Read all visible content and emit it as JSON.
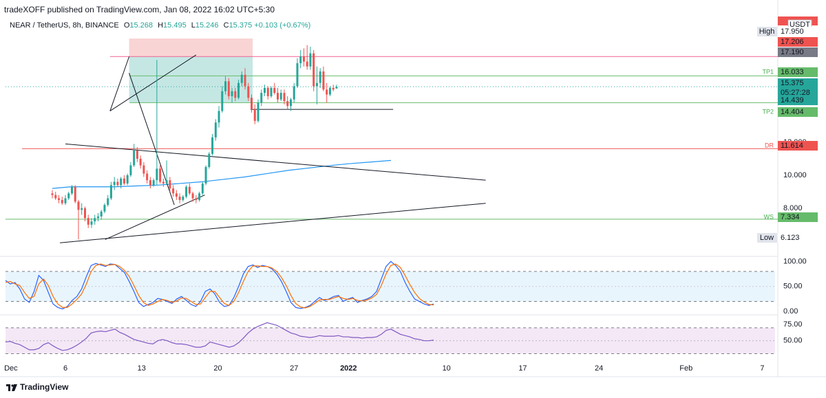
{
  "attribution": "tradeXOFF published on TradingView.com, Jan 08, 2022 16:02 UTC+5:30",
  "symbol": {
    "name": "NEAR / TetherUS, 8h, BINANCE",
    "open_key": "O",
    "open": "15.268",
    "high_key": "H",
    "high": "15.495",
    "low_key": "L",
    "low": "15.246",
    "close_key": "C",
    "close": "15.375",
    "change": "+0.103 (+0.67%)"
  },
  "currency": "USDT",
  "brand": "TradingView",
  "colors": {
    "up": "#26a69a",
    "down": "#ef5350",
    "ma": "#2196f3",
    "stoch_k": "#2962ff",
    "stoch_d": "#ff6d00",
    "rsi": "#7e57c2",
    "stop_zone": "#f7c6c5",
    "target_zone": "#b2dfdb"
  },
  "chart_data": [
    {
      "type": "line",
      "title": "NEAR / TetherUS, 8h, BINANCE",
      "x_ticks": [
        "Dec",
        "6",
        "13",
        "20",
        "27",
        "2022",
        "10",
        "17",
        "24",
        "Feb",
        "7"
      ],
      "y_ticks": [
        "8.000",
        "10.000",
        "12.000"
      ],
      "ylim": [
        5.2,
        18.3
      ],
      "last_price": 15.375,
      "countdown": "05:27:28",
      "price_labels": [
        {
          "tag": "High",
          "value": "17.950"
        },
        {
          "tag": "",
          "value": "17.206"
        },
        {
          "tag": "",
          "value": "17.190"
        },
        {
          "tag": "TP1",
          "value": "16.033"
        },
        {
          "tag": "",
          "value": "15.375"
        },
        {
          "tag": "",
          "value": "14.439"
        },
        {
          "tag": "TP2",
          "value": "14.404"
        },
        {
          "tag": "DR",
          "value": "11.614"
        },
        {
          "tag": "WS",
          "value": "7.334"
        },
        {
          "tag": "Low",
          "value": "6.123"
        }
      ],
      "horizontal_lines": [
        {
          "value": 17.206,
          "color": "#f06292"
        },
        {
          "value": 16.033,
          "color": "#66bb6a"
        },
        {
          "value": 14.404,
          "color": "#66bb6a"
        },
        {
          "value": 11.614,
          "color": "#ef5350"
        },
        {
          "value": 7.334,
          "color": "#66bb6a"
        }
      ],
      "position": {
        "stop_top": 18.3,
        "entry": 17.206,
        "target": 14.404,
        "from_day": 5.85,
        "to_day": 17.2
      },
      "trendlines": [
        {
          "x1": 0,
          "y1": 11.9,
          "x2": 38.6,
          "y2": 9.7
        },
        {
          "x1": -0.5,
          "y1": 5.9,
          "x2": 38.6,
          "y2": 8.3
        },
        {
          "x1": 3.65,
          "y1": 6.1,
          "x2": 12.8,
          "y2": 8.8
        },
        {
          "x1": 10.0,
          "y1": 8.2,
          "x2": 5.85,
          "y2": 16.2
        },
        {
          "x1": 4.1,
          "y1": 13.9,
          "x2": 12.0,
          "y2": 17.3
        },
        {
          "x1": 4.1,
          "y1": 13.9,
          "x2": 5.85,
          "y2": 17.2
        },
        {
          "x1": 17.0,
          "y1": 14.0,
          "x2": 30.1,
          "y2": 14.0
        }
      ],
      "ma_series": {
        "name": "",
        "x": [
          -1.2,
          0.5,
          2.5,
          4.5,
          6.5,
          8.5,
          10.5,
          12.5,
          14.5,
          16.5,
          18.5,
          20.5,
          22.5,
          24.5,
          26.0,
          28.0,
          29.9
        ],
        "values": [
          9.2,
          9.3,
          9.3,
          9.3,
          9.35,
          9.4,
          9.5,
          9.6,
          9.75,
          9.9,
          10.1,
          10.3,
          10.45,
          10.6,
          10.7,
          10.8,
          10.9
        ]
      },
      "candles": [
        {
          "x": -1.2,
          "o": 8.9,
          "h": 9.1,
          "l": 8.6,
          "c": 8.8
        },
        {
          "x": -0.9,
          "o": 8.8,
          "h": 9.0,
          "l": 8.5,
          "c": 8.6
        },
        {
          "x": -0.6,
          "o": 8.6,
          "h": 8.8,
          "l": 8.3,
          "c": 8.5
        },
        {
          "x": -0.3,
          "o": 8.5,
          "h": 8.7,
          "l": 8.2,
          "c": 8.3
        },
        {
          "x": 0.0,
          "o": 8.3,
          "h": 8.8,
          "l": 8.2,
          "c": 8.6
        },
        {
          "x": 0.3,
          "o": 8.6,
          "h": 9.0,
          "l": 8.5,
          "c": 8.9
        },
        {
          "x": 0.6,
          "o": 8.9,
          "h": 9.4,
          "l": 8.8,
          "c": 9.3
        },
        {
          "x": 0.9,
          "o": 9.3,
          "h": 9.4,
          "l": 8.3,
          "c": 8.4
        },
        {
          "x": 1.2,
          "o": 8.4,
          "h": 8.5,
          "l": 6.1,
          "c": 7.9
        },
        {
          "x": 1.5,
          "o": 7.9,
          "h": 8.3,
          "l": 7.6,
          "c": 8.0
        },
        {
          "x": 1.8,
          "o": 8.0,
          "h": 8.1,
          "l": 7.2,
          "c": 7.4
        },
        {
          "x": 2.1,
          "o": 7.4,
          "h": 7.6,
          "l": 6.8,
          "c": 7.0
        },
        {
          "x": 2.4,
          "o": 7.0,
          "h": 7.4,
          "l": 6.8,
          "c": 7.2
        },
        {
          "x": 2.7,
          "o": 7.2,
          "h": 7.6,
          "l": 7.0,
          "c": 7.4
        },
        {
          "x": 3.0,
          "o": 7.4,
          "h": 7.7,
          "l": 7.2,
          "c": 7.5
        },
        {
          "x": 3.3,
          "o": 7.5,
          "h": 7.9,
          "l": 7.3,
          "c": 7.8
        },
        {
          "x": 3.6,
          "o": 7.8,
          "h": 8.3,
          "l": 7.7,
          "c": 8.2
        },
        {
          "x": 3.9,
          "o": 8.2,
          "h": 8.8,
          "l": 8.1,
          "c": 8.6
        },
        {
          "x": 4.2,
          "o": 8.6,
          "h": 9.6,
          "l": 8.5,
          "c": 9.4
        },
        {
          "x": 4.5,
          "o": 9.4,
          "h": 9.9,
          "l": 9.1,
          "c": 9.6
        },
        {
          "x": 4.8,
          "o": 9.6,
          "h": 9.8,
          "l": 9.3,
          "c": 9.4
        },
        {
          "x": 5.1,
          "o": 9.4,
          "h": 9.9,
          "l": 9.2,
          "c": 9.8
        },
        {
          "x": 5.4,
          "o": 9.8,
          "h": 10.0,
          "l": 9.4,
          "c": 9.5
        },
        {
          "x": 5.7,
          "o": 9.5,
          "h": 10.1,
          "l": 9.4,
          "c": 10.0
        },
        {
          "x": 6.0,
          "o": 10.0,
          "h": 10.8,
          "l": 9.9,
          "c": 10.6
        },
        {
          "x": 6.3,
          "o": 10.6,
          "h": 11.9,
          "l": 10.5,
          "c": 11.5
        },
        {
          "x": 6.6,
          "o": 11.5,
          "h": 11.7,
          "l": 10.8,
          "c": 11.0
        },
        {
          "x": 6.9,
          "o": 11.0,
          "h": 11.2,
          "l": 10.4,
          "c": 10.6
        },
        {
          "x": 7.2,
          "o": 10.6,
          "h": 10.8,
          "l": 9.9,
          "c": 10.1
        },
        {
          "x": 7.5,
          "o": 10.1,
          "h": 10.3,
          "l": 9.5,
          "c": 9.7
        },
        {
          "x": 7.8,
          "o": 9.7,
          "h": 9.9,
          "l": 9.2,
          "c": 9.4
        },
        {
          "x": 8.1,
          "o": 9.4,
          "h": 9.8,
          "l": 9.3,
          "c": 9.7
        },
        {
          "x": 8.4,
          "o": 9.7,
          "h": 17.0,
          "l": 9.4,
          "c": 10.4
        },
        {
          "x": 8.7,
          "o": 10.4,
          "h": 10.6,
          "l": 9.5,
          "c": 9.6
        },
        {
          "x": 9.0,
          "o": 9.6,
          "h": 9.8,
          "l": 9.3,
          "c": 9.5
        },
        {
          "x": 9.3,
          "o": 9.5,
          "h": 10.9,
          "l": 9.4,
          "c": 9.7
        },
        {
          "x": 9.6,
          "o": 9.7,
          "h": 9.9,
          "l": 9.0,
          "c": 9.2
        },
        {
          "x": 9.9,
          "o": 9.2,
          "h": 9.4,
          "l": 8.7,
          "c": 8.9
        },
        {
          "x": 10.2,
          "o": 8.9,
          "h": 9.1,
          "l": 8.5,
          "c": 8.7
        },
        {
          "x": 10.5,
          "o": 8.7,
          "h": 8.9,
          "l": 8.3,
          "c": 8.5
        },
        {
          "x": 10.8,
          "o": 8.5,
          "h": 8.8,
          "l": 8.4,
          "c": 8.7
        },
        {
          "x": 11.1,
          "o": 8.7,
          "h": 9.4,
          "l": 8.6,
          "c": 9.3
        },
        {
          "x": 11.4,
          "o": 9.3,
          "h": 9.5,
          "l": 8.8,
          "c": 8.9
        },
        {
          "x": 11.7,
          "o": 8.9,
          "h": 9.0,
          "l": 8.4,
          "c": 8.6
        },
        {
          "x": 12.0,
          "o": 8.6,
          "h": 8.8,
          "l": 8.3,
          "c": 8.5
        },
        {
          "x": 12.3,
          "o": 8.5,
          "h": 9.0,
          "l": 8.4,
          "c": 8.9
        },
        {
          "x": 12.6,
          "o": 8.9,
          "h": 9.6,
          "l": 8.8,
          "c": 9.5
        },
        {
          "x": 12.9,
          "o": 9.5,
          "h": 10.6,
          "l": 9.4,
          "c": 10.5
        },
        {
          "x": 13.2,
          "o": 10.5,
          "h": 11.4,
          "l": 10.4,
          "c": 11.3
        },
        {
          "x": 13.5,
          "o": 11.3,
          "h": 12.5,
          "l": 11.2,
          "c": 12.3
        },
        {
          "x": 13.8,
          "o": 12.3,
          "h": 13.4,
          "l": 12.1,
          "c": 13.2
        },
        {
          "x": 14.1,
          "o": 13.2,
          "h": 14.2,
          "l": 12.9,
          "c": 13.9
        },
        {
          "x": 14.4,
          "o": 13.9,
          "h": 15.4,
          "l": 13.8,
          "c": 15.1
        },
        {
          "x": 14.7,
          "o": 15.1,
          "h": 16.0,
          "l": 14.9,
          "c": 15.7
        },
        {
          "x": 15.0,
          "o": 15.7,
          "h": 15.9,
          "l": 14.6,
          "c": 14.8
        },
        {
          "x": 15.3,
          "o": 14.8,
          "h": 15.3,
          "l": 14.4,
          "c": 15.1
        },
        {
          "x": 15.6,
          "o": 15.1,
          "h": 15.3,
          "l": 14.5,
          "c": 14.7
        },
        {
          "x": 15.9,
          "o": 14.7,
          "h": 15.8,
          "l": 14.6,
          "c": 15.6
        },
        {
          "x": 16.2,
          "o": 15.6,
          "h": 16.3,
          "l": 15.4,
          "c": 16.1
        },
        {
          "x": 16.5,
          "o": 16.1,
          "h": 16.5,
          "l": 15.2,
          "c": 15.4
        },
        {
          "x": 16.8,
          "o": 15.4,
          "h": 15.6,
          "l": 14.5,
          "c": 14.7
        },
        {
          "x": 17.1,
          "o": 14.7,
          "h": 14.9,
          "l": 13.8,
          "c": 14.0
        },
        {
          "x": 17.4,
          "o": 14.0,
          "h": 14.3,
          "l": 13.1,
          "c": 13.3
        },
        {
          "x": 17.7,
          "o": 13.3,
          "h": 14.6,
          "l": 13.2,
          "c": 14.4
        },
        {
          "x": 18.0,
          "o": 14.4,
          "h": 15.2,
          "l": 14.2,
          "c": 15.0
        },
        {
          "x": 18.3,
          "o": 15.0,
          "h": 15.5,
          "l": 14.8,
          "c": 15.3
        },
        {
          "x": 18.6,
          "o": 15.3,
          "h": 15.4,
          "l": 14.6,
          "c": 14.8
        },
        {
          "x": 18.9,
          "o": 14.8,
          "h": 15.4,
          "l": 14.7,
          "c": 15.3
        },
        {
          "x": 19.2,
          "o": 15.3,
          "h": 15.6,
          "l": 14.9,
          "c": 15.0
        },
        {
          "x": 19.5,
          "o": 15.0,
          "h": 15.3,
          "l": 14.4,
          "c": 14.6
        },
        {
          "x": 19.8,
          "o": 14.6,
          "h": 15.2,
          "l": 14.5,
          "c": 15.0
        },
        {
          "x": 20.1,
          "o": 15.0,
          "h": 15.2,
          "l": 14.3,
          "c": 14.5
        },
        {
          "x": 20.4,
          "o": 14.5,
          "h": 14.8,
          "l": 14.0,
          "c": 14.2
        },
        {
          "x": 20.7,
          "o": 14.2,
          "h": 14.7,
          "l": 13.9,
          "c": 14.6
        },
        {
          "x": 21.0,
          "o": 14.6,
          "h": 15.6,
          "l": 14.4,
          "c": 15.4
        },
        {
          "x": 21.3,
          "o": 15.4,
          "h": 17.1,
          "l": 15.3,
          "c": 16.8
        },
        {
          "x": 21.6,
          "o": 16.8,
          "h": 17.6,
          "l": 16.5,
          "c": 17.2
        },
        {
          "x": 21.9,
          "o": 17.2,
          "h": 17.7,
          "l": 16.6,
          "c": 16.9
        },
        {
          "x": 22.2,
          "o": 16.9,
          "h": 17.9,
          "l": 16.4,
          "c": 16.6
        },
        {
          "x": 22.5,
          "o": 16.6,
          "h": 17.8,
          "l": 16.4,
          "c": 17.4
        },
        {
          "x": 22.8,
          "o": 17.4,
          "h": 17.6,
          "l": 15.1,
          "c": 15.4
        },
        {
          "x": 23.1,
          "o": 15.4,
          "h": 16.6,
          "l": 14.3,
          "c": 15.6
        },
        {
          "x": 23.4,
          "o": 15.6,
          "h": 16.5,
          "l": 15.3,
          "c": 16.3
        },
        {
          "x": 23.7,
          "o": 16.3,
          "h": 16.6,
          "l": 15.1,
          "c": 15.2
        },
        {
          "x": 24.0,
          "o": 15.2,
          "h": 15.6,
          "l": 14.4,
          "c": 14.9
        },
        {
          "x": 24.3,
          "o": 14.9,
          "h": 15.4,
          "l": 14.8,
          "c": 15.3
        },
        {
          "x": 24.6,
          "o": 15.3,
          "h": 15.5,
          "l": 15.1,
          "c": 15.2
        },
        {
          "x": 24.9,
          "o": 15.268,
          "h": 15.495,
          "l": 15.246,
          "c": 15.375
        }
      ]
    },
    {
      "type": "line",
      "y_ticks": [
        "100.00",
        "50.00",
        "0.00"
      ],
      "ylim": [
        -4,
        106
      ],
      "bands": [
        80,
        20
      ],
      "series": [
        {
          "values": [
            62,
            55,
            58,
            45,
            25,
            18,
            40,
            72,
            62,
            38,
            15,
            8,
            5,
            10,
            22,
            30,
            45,
            70,
            92,
            96,
            93,
            90,
            95,
            94,
            86,
            78,
            60,
            40,
            18,
            10,
            14,
            18,
            26,
            24,
            20,
            16,
            25,
            30,
            22,
            14,
            10,
            20,
            40,
            45,
            35,
            18,
            10,
            12,
            28,
            50,
            75,
            90,
            93,
            88,
            92,
            90,
            85,
            75,
            60,
            40,
            18,
            8,
            6,
            8,
            12,
            20,
            28,
            22,
            25,
            30,
            32,
            20,
            25,
            28,
            18,
            22,
            25,
            30,
            40,
            65,
            90,
            100,
            92,
            80,
            58,
            40,
            25,
            20,
            15,
            12,
            15
          ]
        },
        {
          "values": [
            58,
            60,
            55,
            52,
            38,
            26,
            30,
            55,
            65,
            52,
            30,
            15,
            8,
            8,
            15,
            24,
            35,
            55,
            80,
            92,
            95,
            92,
            93,
            94,
            90,
            82,
            70,
            52,
            32,
            18,
            12,
            15,
            20,
            24,
            22,
            18,
            21,
            27,
            26,
            20,
            14,
            15,
            28,
            40,
            40,
            28,
            16,
            12,
            20,
            38,
            60,
            80,
            91,
            91,
            90,
            90,
            87,
            80,
            68,
            52,
            32,
            16,
            9,
            7,
            10,
            16,
            23,
            24,
            24,
            27,
            30,
            26,
            24,
            26,
            22,
            21,
            23,
            27,
            34,
            52,
            75,
            92,
            95,
            88,
            72,
            54,
            38,
            26,
            19,
            14,
            13
          ]
        }
      ]
    },
    {
      "type": "line",
      "y_ticks": [
        "75.00",
        "50.00"
      ],
      "ylim": [
        22,
        88
      ],
      "bands": [
        70,
        30
      ],
      "series": [
        {
          "values": [
            48,
            49,
            46,
            44,
            40,
            36,
            36,
            38,
            44,
            47,
            42,
            38,
            35,
            36,
            39,
            43,
            48,
            54,
            62,
            64,
            65,
            64,
            66,
            68,
            63,
            60,
            56,
            52,
            50,
            48,
            46,
            45,
            50,
            52,
            50,
            47,
            45,
            45,
            44,
            42,
            40,
            40,
            42,
            48,
            46,
            44,
            42,
            40,
            42,
            47,
            54,
            62,
            68,
            72,
            75,
            78,
            76,
            74,
            70,
            66,
            62,
            60,
            57,
            56,
            55,
            56,
            58,
            57,
            57,
            57,
            58,
            56,
            56,
            55,
            55,
            54,
            55,
            55,
            56,
            60,
            66,
            68,
            64,
            60,
            58,
            56,
            53,
            52,
            50,
            50,
            51
          ]
        }
      ]
    }
  ]
}
